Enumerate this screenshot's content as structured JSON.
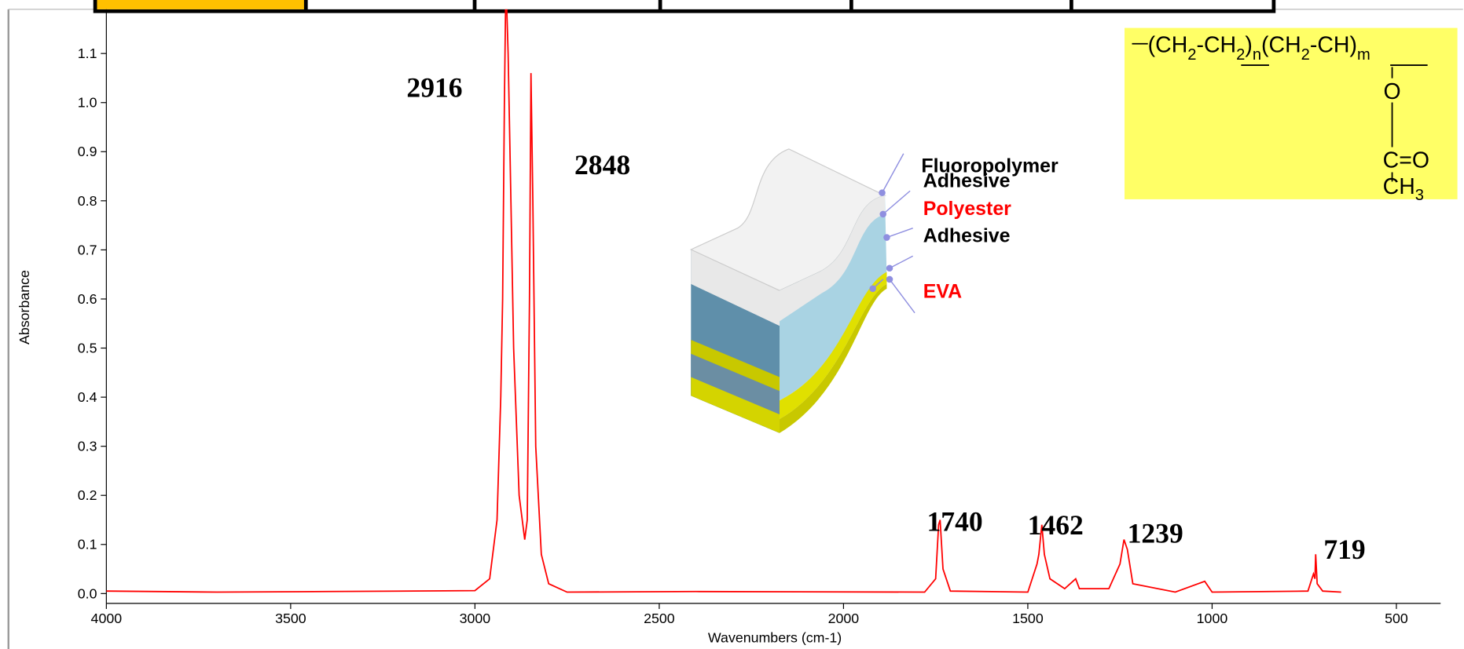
{
  "chart_data": {
    "type": "line",
    "xlabel": "Wavenumbers (cm-1)",
    "ylabel": "Absorbance",
    "color": "#ff0000",
    "x": [
      4000,
      3700,
      3400,
      3000,
      2960,
      2940,
      2930,
      2925,
      2920,
      2916,
      2910,
      2905,
      2895,
      2880,
      2865,
      2858,
      2852,
      2848,
      2843,
      2835,
      2820,
      2800,
      2750,
      2400,
      1780,
      1750,
      1742,
      1738,
      1730,
      1710,
      1500,
      1475,
      1470,
      1462,
      1455,
      1440,
      1400,
      1370,
      1360,
      1280,
      1250,
      1239,
      1230,
      1215,
      1100,
      1020,
      1000,
      740,
      725,
      721,
      719,
      715,
      700,
      650
    ],
    "values": [
      0.005,
      0.003,
      0.004,
      0.006,
      0.03,
      0.15,
      0.4,
      0.6,
      1.0,
      1.25,
      1.1,
      0.9,
      0.5,
      0.2,
      0.11,
      0.15,
      0.6,
      1.06,
      0.8,
      0.3,
      0.08,
      0.02,
      0.003,
      0.004,
      0.003,
      0.03,
      0.14,
      0.15,
      0.05,
      0.005,
      0.003,
      0.06,
      0.08,
      0.14,
      0.08,
      0.03,
      0.01,
      0.03,
      0.01,
      0.01,
      0.06,
      0.11,
      0.09,
      0.02,
      0.003,
      0.025,
      0.003,
      0.005,
      0.04,
      0.03,
      0.08,
      0.02,
      0.005,
      0.003
    ],
    "xlim": [
      4000,
      380
    ],
    "ylim": [
      -0.02,
      1.19
    ],
    "xticks": [
      4000,
      3500,
      3000,
      2500,
      2000,
      1500,
      1000,
      500
    ],
    "yticks": [
      {
        "value": 0,
        "label": "0.0"
      },
      0.1,
      0.2,
      0.3,
      0.4,
      0.5,
      0.6,
      0.7,
      0.8,
      0.9,
      {
        "value": 1,
        "label": "1.0"
      },
      1.1
    ],
    "annotations": [
      "2916",
      "2848",
      "1740",
      "1462",
      "1239",
      "719"
    ]
  },
  "inset": {
    "layers": [
      {
        "label": "Fluoropolymer",
        "color": "#000000"
      },
      {
        "label": "Adhesive",
        "color": "#000000"
      },
      {
        "label": "Polyester",
        "color": "#ff0000"
      },
      {
        "label": "Adhesive",
        "color": "#000000"
      },
      {
        "label": "EVA",
        "color": "#ff0000"
      }
    ]
  },
  "structure": {
    "chain": [
      "(CH",
      "2",
      "-CH",
      "2",
      ")",
      "n",
      "(CH",
      "2",
      "-CH",
      ")",
      "m"
    ],
    "oxygen": "O",
    "carbon": "C",
    "carbonyl": "=O",
    "methyl": "CH",
    "methyl_sub": "3"
  }
}
